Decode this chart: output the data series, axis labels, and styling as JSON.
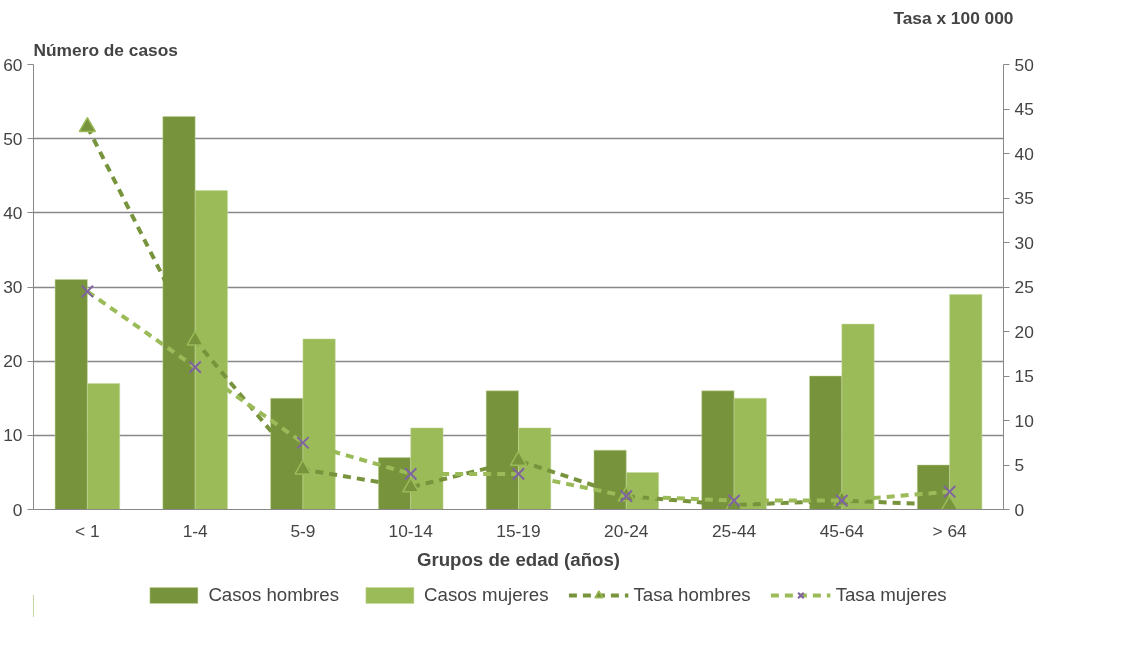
{
  "chart_data": {
    "type": "bar",
    "xlabel": "Grupos de edad (años)",
    "ylabel": "Número de casos",
    "y2label": "Tasa x 100 000",
    "categories": [
      "< 1",
      "1-4",
      "5-9",
      "10-14",
      "15-19",
      "20-24",
      "25-44",
      "45-64",
      "> 64"
    ],
    "series": [
      {
        "name": "Casos hombres",
        "color": "#77933c",
        "values": [
          31,
          53,
          15,
          7,
          16,
          8,
          16,
          18,
          6
        ]
      },
      {
        "name": "Casos mujeres",
        "color": "#9bbb59",
        "values": [
          17,
          43,
          23,
          11,
          11,
          5,
          15,
          25,
          29
        ]
      },
      {
        "name": "Tasa hombres",
        "type": "line",
        "axis": "y2",
        "color": "#77933c",
        "marker": "triangle",
        "line_style": "dashed",
        "values": [
          43,
          19,
          4.5,
          2.5,
          5.5,
          1.5,
          0.5,
          1,
          0.5
        ]
      },
      {
        "name": "Tasa mujeres",
        "type": "line",
        "axis": "y2",
        "color": "#9bbb59",
        "marker": "cross",
        "line_style": "dashed",
        "values": [
          24.5,
          16,
          7.5,
          4,
          4,
          1.5,
          1,
          1,
          2
        ]
      }
    ],
    "ylim": [
      0,
      60
    ],
    "yticks": [
      0,
      10,
      20,
      30,
      40,
      50,
      60
    ],
    "y2lim": [
      0,
      50
    ],
    "y2ticks": [
      0,
      5,
      10,
      15,
      20,
      25,
      30,
      35,
      40,
      45,
      50
    ],
    "grid": "y",
    "legend": "bottom"
  }
}
